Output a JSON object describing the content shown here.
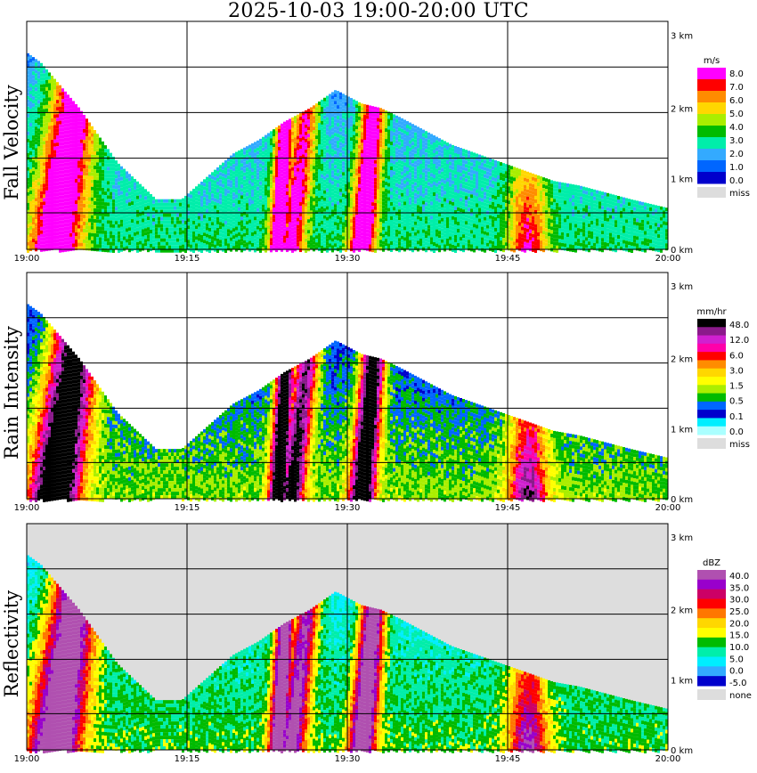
{
  "title": "2025-10-03   19:00-20:00 UTC",
  "chart_data": [
    {
      "type": "heatmap",
      "ylabel": "Fall Velocity",
      "x_ticks": [
        "19:00",
        "19:15",
        "19:30",
        "19:45",
        "20:00"
      ],
      "y_ticks": [
        "0 km",
        "1 km",
        "2 km",
        "3 km"
      ],
      "colorbar": {
        "unit": "m/s",
        "labels": [
          "8.0",
          "7.0",
          "6.0",
          "5.0",
          "4.0",
          "3.0",
          "2.0",
          "1.0",
          "0.0",
          "miss"
        ],
        "colors": [
          "#ff00ff",
          "#ff0000",
          "#ff8c00",
          "#ffd700",
          "#aaee00",
          "#00bb00",
          "#00eeaa",
          "#33aaff",
          "#0066ff",
          "#0000cc",
          "#dddddd"
        ]
      },
      "background": "#ffffff"
    },
    {
      "type": "heatmap",
      "ylabel": "Rain Intensity",
      "x_ticks": [
        "19:00",
        "19:15",
        "19:30",
        "19:45",
        "20:00"
      ],
      "y_ticks": [
        "0 km",
        "1 km",
        "2 km",
        "3 km"
      ],
      "colorbar": {
        "unit": "mm/hr",
        "labels": [
          "48.0",
          "12.0",
          "6.0",
          "3.0",
          "1.5",
          "0.5",
          "0.1",
          "0.0",
          "miss"
        ],
        "colors": [
          "#000000",
          "#8b1a8b",
          "#d020d0",
          "#ff00aa",
          "#ff0000",
          "#ff8c00",
          "#ffd700",
          "#ffff00",
          "#aaee00",
          "#00bb00",
          "#0066ff",
          "#0000cc",
          "#00eeff",
          "#aaffff",
          "#dddddd"
        ]
      },
      "background": "#ffffff"
    },
    {
      "type": "heatmap",
      "ylabel": "Reflectivity",
      "x_ticks": [
        "19:00",
        "19:15",
        "19:30",
        "19:45",
        "20:00"
      ],
      "y_ticks": [
        "0 km",
        "1 km",
        "2 km",
        "3 km"
      ],
      "colorbar": {
        "unit": "dBZ",
        "labels": [
          "40.0",
          "35.0",
          "30.0",
          "25.0",
          "20.0",
          "15.0",
          "10.0",
          "5.0",
          "0.0",
          "-5.0",
          "none"
        ],
        "colors": [
          "#b050b0",
          "#9900cc",
          "#cc0066",
          "#ff0000",
          "#ff7700",
          "#ffd700",
          "#ffff00",
          "#00bb00",
          "#00eeaa",
          "#00eeff",
          "#33aaff",
          "#0000cc",
          "#dddddd"
        ]
      },
      "background": "#dddddd"
    }
  ]
}
